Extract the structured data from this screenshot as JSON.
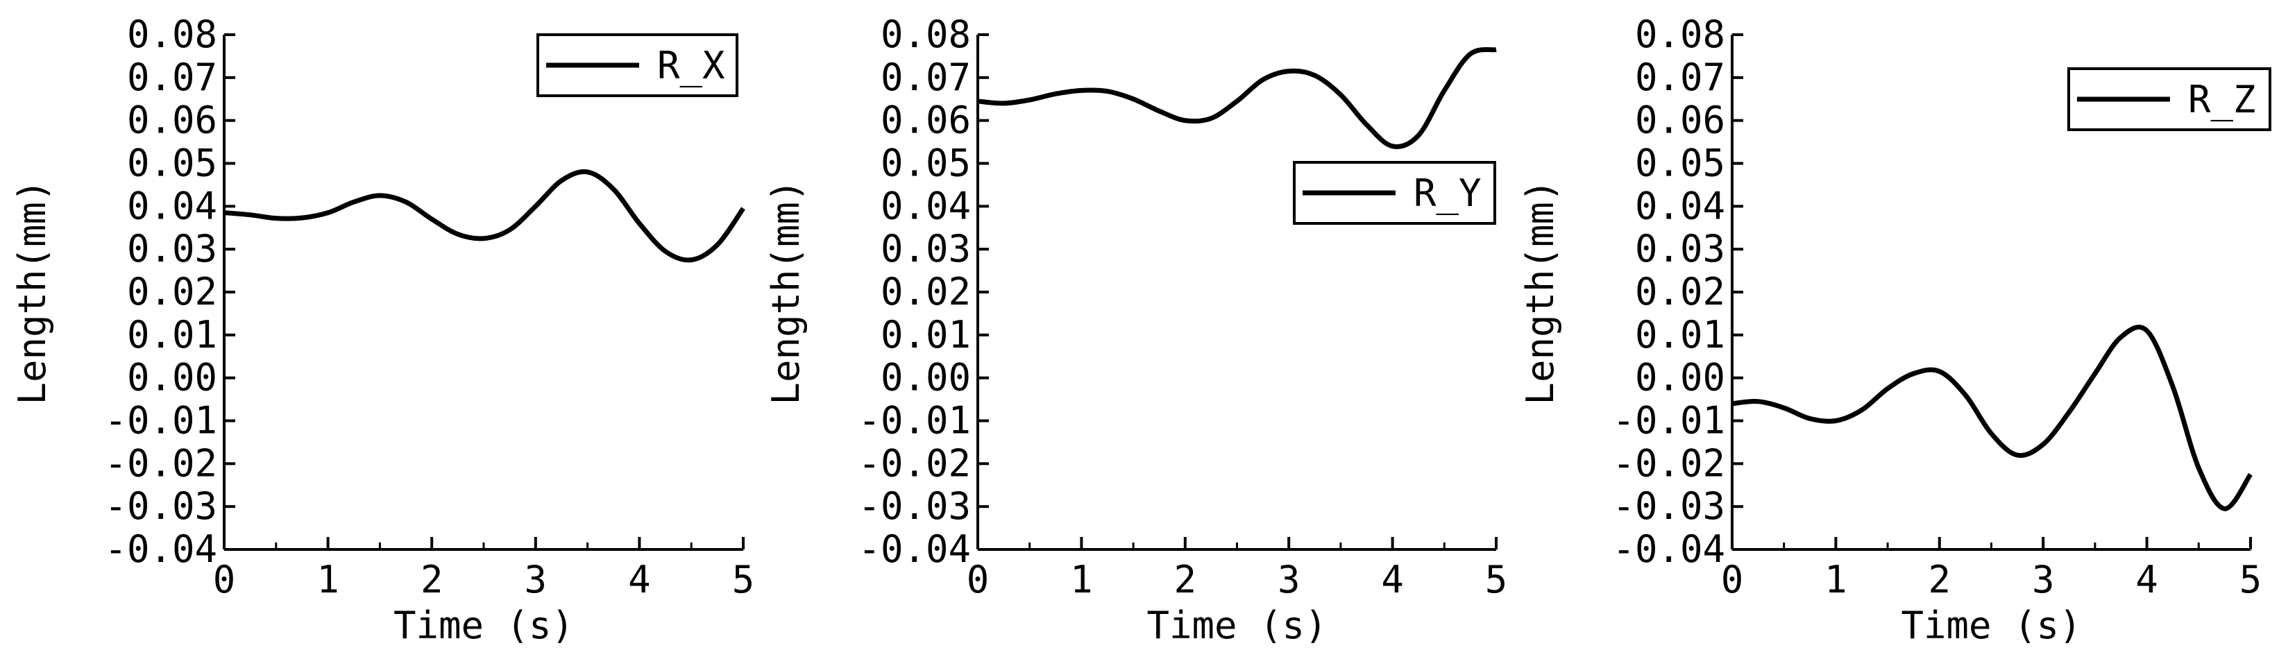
{
  "chart_data": [
    {
      "type": "line",
      "xlabel": "Time (s)",
      "ylabel": "Length(mm)",
      "xlim": [
        0,
        5
      ],
      "ylim": [
        -0.04,
        0.08
      ],
      "xticks": [
        "0",
        "1",
        "2",
        "3",
        "4",
        "5"
      ],
      "yticks": [
        "-0.04",
        "-0.03",
        "-0.02",
        "-0.01",
        "0.00",
        "0.01",
        "0.02",
        "0.03",
        "0.04",
        "0.05",
        "0.06",
        "0.07",
        "0.08"
      ],
      "legend_position": "top-right",
      "grid": false,
      "series": [
        {
          "name": "R_X",
          "color": "#000000",
          "x": [
            0,
            0.25,
            0.5,
            0.75,
            1.0,
            1.25,
            1.5,
            1.75,
            2.0,
            2.25,
            2.5,
            2.75,
            3.0,
            3.25,
            3.5,
            3.75,
            4.0,
            4.25,
            4.5,
            4.75,
            5.0
          ],
          "y": [
            0.0385,
            0.038,
            0.0372,
            0.0373,
            0.0385,
            0.041,
            0.0425,
            0.041,
            0.037,
            0.0335,
            0.0325,
            0.0345,
            0.04,
            0.046,
            0.048,
            0.044,
            0.036,
            0.0295,
            0.0275,
            0.031,
            0.0395
          ]
        }
      ]
    },
    {
      "type": "line",
      "xlabel": "Time (s)",
      "ylabel": "Length(mm)",
      "xlim": [
        0,
        5
      ],
      "ylim": [
        -0.04,
        0.08
      ],
      "xticks": [
        "0",
        "1",
        "2",
        "3",
        "4",
        "5"
      ],
      "yticks": [
        "-0.04",
        "-0.03",
        "-0.02",
        "-0.01",
        "0.00",
        "0.01",
        "0.02",
        "0.03",
        "0.04",
        "0.05",
        "0.06",
        "0.07",
        "0.08"
      ],
      "legend_position": "middle-right",
      "grid": false,
      "series": [
        {
          "name": "R_Y",
          "color": "#000000",
          "x": [
            0,
            0.25,
            0.5,
            0.75,
            1.0,
            1.25,
            1.5,
            1.75,
            2.0,
            2.25,
            2.5,
            2.75,
            3.0,
            3.25,
            3.5,
            3.75,
            4.0,
            4.25,
            4.5,
            4.75,
            5.0
          ],
          "y": [
            0.0645,
            0.064,
            0.0648,
            0.0662,
            0.067,
            0.0668,
            0.065,
            0.0622,
            0.06,
            0.0605,
            0.0645,
            0.0695,
            0.0715,
            0.0705,
            0.066,
            0.059,
            0.054,
            0.0565,
            0.067,
            0.0755,
            0.0765
          ]
        }
      ]
    },
    {
      "type": "line",
      "xlabel": "Time (s)",
      "ylabel": "Length(mm)",
      "xlim": [
        0,
        5
      ],
      "ylim": [
        -0.04,
        0.08
      ],
      "xticks": [
        "0",
        "1",
        "2",
        "3",
        "4",
        "5"
      ],
      "yticks": [
        "-0.04",
        "-0.03",
        "-0.02",
        "-0.01",
        "0.00",
        "0.01",
        "0.02",
        "0.03",
        "0.04",
        "0.05",
        "0.06",
        "0.07",
        "0.08"
      ],
      "legend_position": "top-right",
      "grid": false,
      "series": [
        {
          "name": "R_Z",
          "color": "#000000",
          "x": [
            0,
            0.25,
            0.5,
            0.75,
            1.0,
            1.25,
            1.5,
            1.75,
            2.0,
            2.25,
            2.5,
            2.75,
            3.0,
            3.25,
            3.5,
            3.75,
            4.0,
            4.25,
            4.5,
            4.75,
            5.0
          ],
          "y": [
            -0.006,
            -0.0055,
            -0.007,
            -0.0095,
            -0.01,
            -0.0075,
            -0.0025,
            0.001,
            0.0015,
            -0.004,
            -0.013,
            -0.018,
            -0.0155,
            -0.008,
            0.001,
            0.0095,
            0.011,
            -0.002,
            -0.021,
            -0.0305,
            -0.0225
          ]
        }
      ]
    }
  ]
}
